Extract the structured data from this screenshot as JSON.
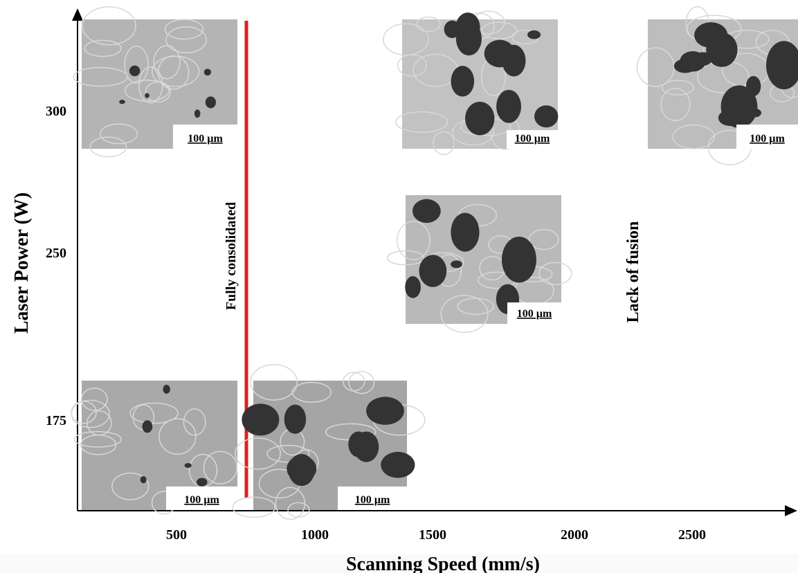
{
  "figure": {
    "y_axis": {
      "label": "Laser Power (W)",
      "ticks": [
        300,
        250,
        175
      ]
    },
    "x_axis": {
      "label": "Scanning Speed (mm/s)",
      "ticks": [
        500,
        1000,
        1500,
        2000,
        2500
      ]
    },
    "regions": [
      "Fully consolidated",
      "Lack of fusion"
    ],
    "micrographs": [
      {
        "scale_bar": "100 µm"
      },
      {
        "scale_bar": "100 µm"
      },
      {
        "scale_bar": "100 µm"
      },
      {
        "scale_bar": "100 µm"
      },
      {
        "scale_bar": "100 µm"
      },
      {
        "scale_bar": "100 µm"
      }
    ]
  }
}
